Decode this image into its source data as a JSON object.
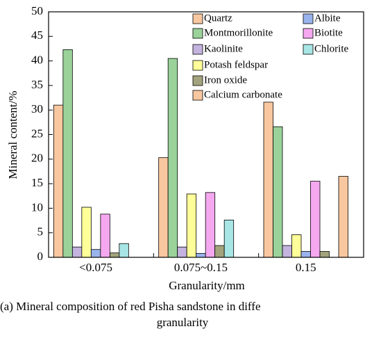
{
  "chart_data": {
    "type": "bar",
    "ylabel": "Mineral content/%",
    "xlabel": "Granularity/mm",
    "caption": [
      "(a) Mineral composition of red Pisha sandstone in diffe",
      "granularity"
    ],
    "categories": [
      "<0.075",
      "0.075~0.15",
      "0.15"
    ],
    "series": [
      {
        "name": "Quartz",
        "color": "#f9c79f",
        "values": [
          31,
          20.3,
          31.6
        ]
      },
      {
        "name": "Montmorillonite",
        "color": "#9ad29a",
        "values": [
          42.3,
          40.5,
          26.6
        ]
      },
      {
        "name": "Kaolinite",
        "color": "#c3b3de",
        "values": [
          2.1,
          2.1,
          2.4
        ]
      },
      {
        "name": "Potash feldspar",
        "color": "#ffff99",
        "values": [
          10.2,
          12.9,
          4.6
        ]
      },
      {
        "name": "Albite",
        "color": "#99b3ec",
        "values": [
          1.6,
          0.8,
          1.2
        ]
      },
      {
        "name": "Biotite",
        "color": "#f5a8f0",
        "values": [
          8.8,
          13.2,
          15.5
        ]
      },
      {
        "name": "Iron oxide",
        "color": "#a3a37d",
        "values": [
          0.9,
          2.4,
          1.2
        ]
      },
      {
        "name": "Chlorite",
        "color": "#a8e6e6",
        "values": [
          2.8,
          7.6,
          null
        ]
      },
      {
        "name": "Calcium carbonate",
        "color": "#f9c79f",
        "values": [
          null,
          null,
          16.5
        ]
      }
    ],
    "ylim": [
      0,
      50
    ],
    "yticks": [
      0,
      5,
      10,
      15,
      20,
      25,
      30,
      35,
      40,
      45,
      50
    ]
  }
}
